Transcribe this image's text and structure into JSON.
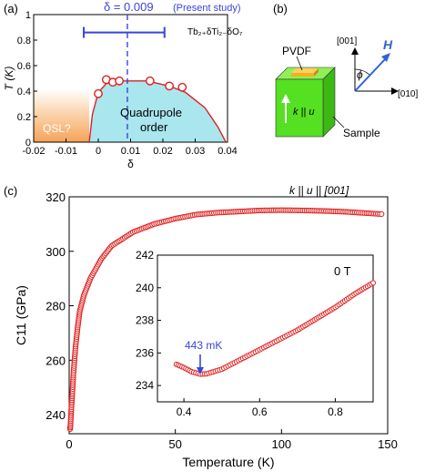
{
  "panel_labels": {
    "a": "(a)",
    "b": "(b)",
    "c": "(c)"
  },
  "panel_a": {
    "delta_annotation": "δ = 0.009",
    "delta_note": "(Present study)",
    "formula": "Tb₂₊δTi₂₋δO₇",
    "qsl_label": "QSL?",
    "quad_label_1": "Quadrupole",
    "quad_label_2": "order",
    "colors": {
      "qsl": "#f6a35a",
      "quad": "#a9e6ee",
      "curve": "#e02020",
      "blue": "#3a45d8"
    }
  },
  "panel_b": {
    "pvdf_label": "PVDF",
    "sample_label": "Sample",
    "ku_label": "k || u",
    "axis_001": "[001]",
    "axis_010": "[010]",
    "phi_label": "ϕ",
    "h_label": "H",
    "colors": {
      "cube": "#55e021",
      "pvdf": "#f2b21e",
      "h": "#2f62d8"
    }
  },
  "panel_c": {
    "annotation": "k || u || [001]",
    "inset_field": "0 T",
    "inset_marker": "443 mK",
    "colors": {
      "data": "#e02020",
      "marker": "#3a45d8"
    }
  },
  "chart_data": [
    {
      "type": "line",
      "xlabel": "δ",
      "ylabel": "T (K)",
      "xlim": [
        -0.02,
        0.04
      ],
      "ylim": [
        0,
        1
      ],
      "xticks": [
        "-0.02",
        "-0.01",
        "0",
        "0.01",
        "0.02",
        "0.03",
        "0.04"
      ],
      "yticks": [
        "0",
        "0.2",
        "0.4",
        "0.6",
        "0.8",
        "1"
      ],
      "series": [
        {
          "points": [
            [
              0.0,
              0.38
            ],
            [
              0.0025,
              0.49
            ],
            [
              0.0045,
              0.47
            ],
            [
              0.0065,
              0.48
            ],
            [
              0.016,
              0.48
            ],
            [
              0.022,
              0.44
            ],
            [
              0.026,
              0.43
            ]
          ]
        }
      ],
      "phase_boundary": [
        [
          -0.0028,
          0.0
        ],
        [
          -0.0018,
          0.22
        ],
        [
          0.0,
          0.39
        ],
        [
          0.0025,
          0.46
        ],
        [
          0.008,
          0.48
        ],
        [
          0.015,
          0.48
        ],
        [
          0.022,
          0.44
        ],
        [
          0.027,
          0.39
        ],
        [
          0.033,
          0.27
        ],
        [
          0.037,
          0.12
        ],
        [
          0.0395,
          0.0
        ]
      ],
      "vline": 0.009,
      "error_bar": [
        -0.0045,
        0.0205
      ],
      "error_bar_y": 0.86
    },
    {
      "type": "scatter",
      "xlabel": "Temperature (K)",
      "ylabel": "C11 (GPa)",
      "xlim": [
        0,
        150
      ],
      "ylim": [
        233,
        320
      ],
      "xticks": [
        "0",
        "50",
        "100",
        "150"
      ],
      "yticks": [
        "240",
        "260",
        "280",
        "300",
        "320"
      ],
      "series": [
        {
          "points": [
            [
              0.4,
              235.3
            ],
            [
              0.45,
              234.7
            ],
            [
              0.6,
              235.8
            ],
            [
              0.8,
              238.9
            ],
            [
              0.9,
              240.2
            ],
            [
              1,
              242
            ],
            [
              1.5,
              248
            ],
            [
              2,
              255
            ],
            [
              3,
              265
            ],
            [
              4,
              272
            ],
            [
              5,
              278
            ],
            [
              7,
              284
            ],
            [
              10,
              290
            ],
            [
              15,
              297
            ],
            [
              20,
              302
            ],
            [
              30,
              307
            ],
            [
              40,
              310
            ],
            [
              50,
              312
            ],
            [
              60,
              313.5
            ],
            [
              70,
              314.2
            ],
            [
              80,
              314.6
            ],
            [
              90,
              315
            ],
            [
              100,
              315.1
            ],
            [
              110,
              315
            ],
            [
              120,
              314.8
            ],
            [
              130,
              314.5
            ],
            [
              140,
              314
            ],
            [
              148,
              313.6
            ]
          ]
        }
      ]
    },
    {
      "type": "scatter",
      "xlabel": "",
      "ylabel": "",
      "xlim": [
        0.33,
        0.9
      ],
      "ylim": [
        233,
        242
      ],
      "xticks": [
        "0.4",
        "0.6",
        "0.8"
      ],
      "yticks": [
        "234",
        "236",
        "238",
        "240",
        "242"
      ],
      "series": [
        {
          "points": [
            [
              0.38,
              235.3
            ],
            [
              0.4,
              235.1
            ],
            [
              0.42,
              234.85
            ],
            [
              0.443,
              234.7
            ],
            [
              0.46,
              234.72
            ],
            [
              0.5,
              235.0
            ],
            [
              0.55,
              235.6
            ],
            [
              0.6,
              236.2
            ],
            [
              0.65,
              236.8
            ],
            [
              0.7,
              237.4
            ],
            [
              0.75,
              238.1
            ],
            [
              0.8,
              238.8
            ],
            [
              0.85,
              239.6
            ],
            [
              0.9,
              240.3
            ]
          ]
        }
      ],
      "marker_x": 0.443
    }
  ]
}
